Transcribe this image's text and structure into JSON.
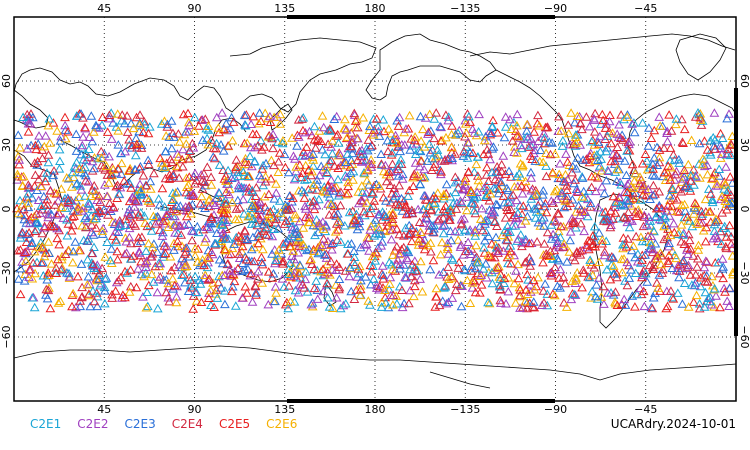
{
  "map": {
    "projection": "cylindrical equidistant",
    "central_longitude": 180,
    "lon_range": [
      0,
      360
    ],
    "lat_range": [
      -90,
      90
    ],
    "grid": "dotted",
    "top_lon_ticks": [
      "45",
      "90",
      "135",
      "180",
      "−135",
      "−90",
      "−45"
    ],
    "bottom_lon_ticks": [
      "45",
      "90",
      "135",
      "180",
      "−135",
      "−90",
      "−45"
    ],
    "lat_ticks": [
      "60",
      "30",
      "0",
      "−30",
      "−60"
    ],
    "land_outline_color": "#000000"
  },
  "legend": {
    "items": [
      {
        "label": "C2E1",
        "color": "#1aa5d6"
      },
      {
        "label": "C2E2",
        "color": "#a040c0"
      },
      {
        "label": "C2E3",
        "color": "#2a6fd8"
      },
      {
        "label": "C2E4",
        "color": "#d22840"
      },
      {
        "label": "C2E5",
        "color": "#e82020"
      },
      {
        "label": "C2E6",
        "color": "#f5b000"
      }
    ]
  },
  "stamp": "UCARdry.2024-10-01",
  "markers": {
    "symbol": "open-triangle",
    "lat_band": [
      -47,
      45
    ],
    "approx_count": 3200
  }
}
